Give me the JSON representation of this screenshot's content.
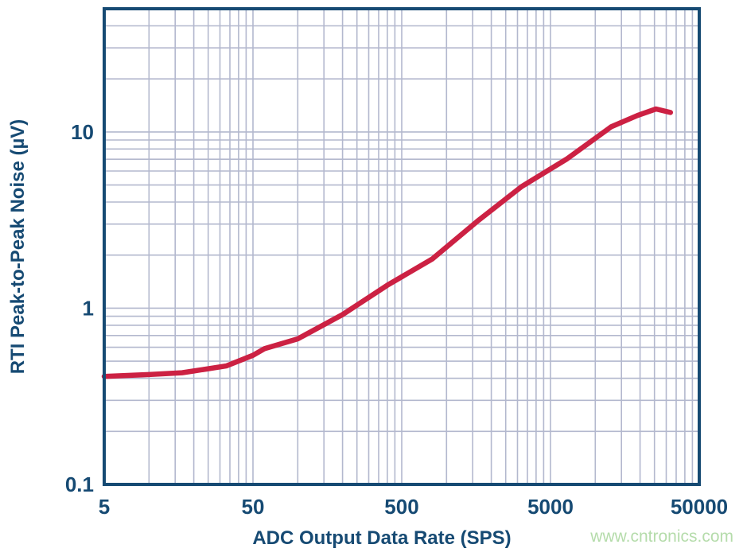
{
  "watermark": {
    "text": "www.cntronics.com",
    "color": "#b5dcab"
  },
  "chart_data": {
    "type": "line",
    "title": "",
    "xlabel": "ADC Output Data Rate (SPS)",
    "ylabel": "RTI Peak-to-Peak Noise (µV)",
    "x_scale": "log",
    "y_scale": "log",
    "xlim": [
      5,
      50000
    ],
    "ylim": [
      0.1,
      50
    ],
    "grid": true,
    "legend": "none",
    "x_ticks": [
      {
        "value": 5,
        "label": "5"
      },
      {
        "value": 50,
        "label": "50"
      },
      {
        "value": 500,
        "label": "500"
      },
      {
        "value": 5000,
        "label": "5000"
      },
      {
        "value": 50000,
        "label": "50000"
      }
    ],
    "y_ticks": [
      {
        "value": 0.1,
        "label": "0.1"
      },
      {
        "value": 1,
        "label": "1"
      },
      {
        "value": 10,
        "label": "10"
      }
    ],
    "series": [
      {
        "name": "RTI peak-to-peak noise",
        "color": "#cc2143",
        "points": [
          [
            5,
            0.41
          ],
          [
            10,
            0.42
          ],
          [
            16.7,
            0.43
          ],
          [
            20,
            0.44
          ],
          [
            33,
            0.47
          ],
          [
            50,
            0.54
          ],
          [
            60,
            0.59
          ],
          [
            100,
            0.67
          ],
          [
            200,
            0.92
          ],
          [
            400,
            1.35
          ],
          [
            800,
            1.9
          ],
          [
            1600,
            3.1
          ],
          [
            3200,
            4.9
          ],
          [
            6400,
            7.0
          ],
          [
            12800,
            10.7
          ],
          [
            19200,
            12.4
          ],
          [
            25600,
            13.5
          ],
          [
            32000,
            12.9
          ]
        ]
      }
    ],
    "axis_color": "#164a73",
    "grid_color": "#b3b8ce",
    "plot_background": "#ffffff"
  }
}
